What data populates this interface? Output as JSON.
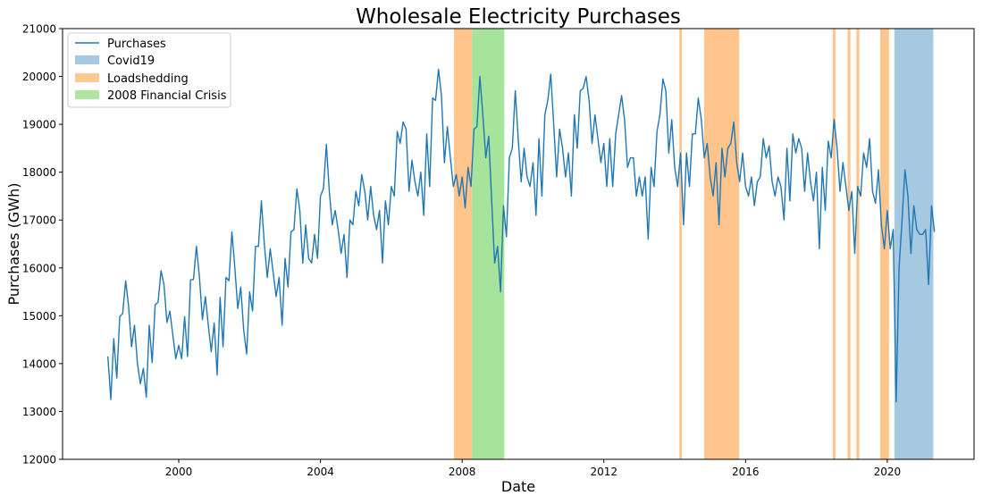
{
  "chart_data": {
    "type": "line",
    "title": "Wholesale Electricity Purchases",
    "xlabel": "Date",
    "ylabel": "Purchases (GWh)",
    "xlim": [
      1996.72,
      2022.45
    ],
    "ylim": [
      12000,
      21000
    ],
    "xticks": [
      2000,
      2004,
      2008,
      2012,
      2016,
      2020
    ],
    "xtick_labels": [
      "2000",
      "2004",
      "2008",
      "2012",
      "2016",
      "2020"
    ],
    "yticks": [
      12000,
      13000,
      14000,
      15000,
      16000,
      17000,
      18000,
      19000,
      20000,
      21000
    ],
    "ytick_labels": [
      "12000",
      "13000",
      "14000",
      "15000",
      "16000",
      "17000",
      "18000",
      "19000",
      "20000",
      "21000"
    ],
    "grid": false,
    "legend_position": "top-left",
    "legend": [
      "Purchases",
      "Covid19",
      "Loadshedding",
      "2008 Financial Crisis"
    ],
    "start": {
      "year": 1998,
      "month": 1
    },
    "frequency": "monthly",
    "series": [
      {
        "name": "Purchases",
        "color": "#1f77b4",
        "values": [
          14150,
          13250,
          14520,
          13700,
          14980,
          15050,
          15730,
          15200,
          14350,
          14800,
          14000,
          13580,
          13900,
          13300,
          14800,
          14020,
          15230,
          15280,
          15940,
          15650,
          14860,
          15100,
          14600,
          14100,
          14380,
          14100,
          14980,
          14150,
          15750,
          15760,
          16450,
          15800,
          14920,
          15400,
          14800,
          14250,
          14850,
          13760,
          15380,
          14350,
          15800,
          15730,
          16750,
          16000,
          15150,
          15600,
          14700,
          14200,
          15500,
          15100,
          16450,
          16450,
          17400,
          16500,
          15800,
          16400,
          15900,
          15400,
          15800,
          14800,
          16200,
          15600,
          16750,
          16800,
          17650,
          17200,
          16100,
          16900,
          16200,
          16100,
          16700,
          16200,
          17500,
          17650,
          18580,
          17600,
          16900,
          17200,
          16800,
          16300,
          16700,
          15800,
          17000,
          16900,
          17600,
          17300,
          17950,
          17600,
          17000,
          17700,
          17100,
          16800,
          17200,
          16100,
          17400,
          16900,
          17700,
          17500,
          18850,
          18600,
          19050,
          18900,
          17600,
          18250,
          17800,
          17500,
          18000,
          17100,
          18800,
          17700,
          19550,
          19500,
          20150,
          19600,
          18200,
          18950,
          18300,
          17700,
          17950,
          17500,
          17900,
          17250,
          18100,
          17700,
          18900,
          18950,
          20000,
          19200,
          18300,
          18750,
          17400,
          16100,
          16450,
          15500,
          17300,
          16650,
          18300,
          18500,
          19700,
          18700,
          17800,
          18500,
          17900,
          17700,
          18200,
          17100,
          18700,
          17500,
          19200,
          19500,
          20050,
          19000,
          17900,
          18900,
          18500,
          17900,
          18400,
          17500,
          19200,
          18500,
          19700,
          19750,
          20000,
          19500,
          18600,
          19200,
          18700,
          18200,
          18600,
          17700,
          18700,
          17700,
          18800,
          19200,
          19600,
          19100,
          18100,
          18300,
          18300,
          17500,
          17900,
          17500,
          17900,
          16600,
          18100,
          17700,
          18850,
          19200,
          19950,
          19700,
          18400,
          19100,
          18100,
          17700,
          18400,
          16900,
          18400,
          17700,
          18800,
          18800,
          19550,
          19100,
          18300,
          18600,
          17900,
          17500,
          18200,
          16900,
          18500,
          17900,
          18500,
          18600,
          19050,
          18200,
          17800,
          18400,
          17700,
          17500,
          17900,
          17300,
          17800,
          17900,
          18700,
          18300,
          18550,
          17800,
          17500,
          17900,
          17700,
          17000,
          18500,
          17400,
          18800,
          18400,
          18700,
          18500,
          17600,
          18400,
          17800,
          17400,
          18000,
          16400,
          18100,
          17200,
          18650,
          18300,
          19100,
          18500,
          17600,
          18200,
          17700,
          17200,
          17600,
          16300,
          17700,
          17500,
          18400,
          18100,
          18700,
          17600,
          17350,
          18050,
          16900,
          16400,
          17200,
          16400,
          16800,
          13200,
          16000,
          17000,
          18050,
          17500,
          16300,
          17300,
          16800,
          16700,
          16700,
          16800,
          15650,
          17300,
          16750
        ]
      }
    ],
    "spans": [
      {
        "name": "Loadshedding",
        "color": "#ffbb78",
        "from": 2007.77,
        "to": 2008.28
      },
      {
        "name": "2008 Financial Crisis",
        "color": "#98df8a",
        "from": 2008.28,
        "to": 2009.19
      },
      {
        "name": "Loadshedding",
        "color": "#ffbb78",
        "from": 2014.13,
        "to": 2014.2
      },
      {
        "name": "Loadshedding",
        "color": "#ffbb78",
        "from": 2014.83,
        "to": 2015.82
      },
      {
        "name": "Loadshedding",
        "color": "#ffbb78",
        "from": 2018.46,
        "to": 2018.54
      },
      {
        "name": "Loadshedding",
        "color": "#ffbb78",
        "from": 2018.88,
        "to": 2018.96
      },
      {
        "name": "Loadshedding",
        "color": "#ffbb78",
        "from": 2019.13,
        "to": 2019.21
      },
      {
        "name": "Loadshedding",
        "color": "#ffbb78",
        "from": 2019.8,
        "to": 2020.05
      },
      {
        "name": "Covid19",
        "color": "#a6c8e0",
        "from": 2020.2,
        "to": 2021.3
      }
    ]
  }
}
